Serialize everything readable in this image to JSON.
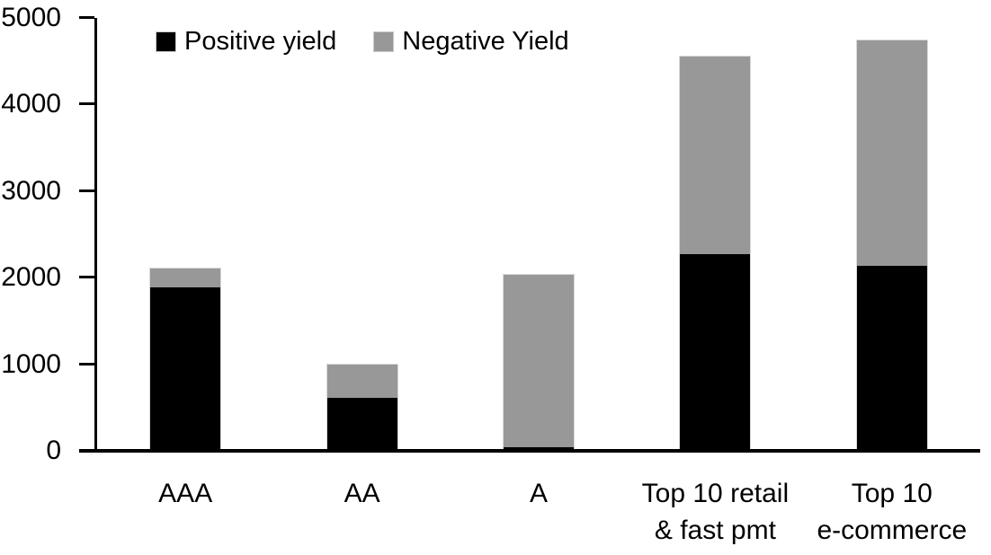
{
  "chart_data": {
    "type": "bar",
    "stacked": true,
    "title": "",
    "xlabel": "",
    "ylabel": "",
    "categories": [
      "AAA",
      "AA",
      "A",
      "Top 10 retail\n& fast pmt",
      "Top 10\ne-commerce"
    ],
    "series": [
      {
        "name": "Positive yield",
        "color": "#000000",
        "values": [
          1890,
          615,
          45,
          2270,
          2140
        ]
      },
      {
        "name": "Negative Yield",
        "color": "#989898",
        "values": [
          220,
          385,
          1985,
          2280,
          2600
        ]
      }
    ],
    "ylim": [
      0,
      5000
    ],
    "yticks": [
      0,
      1000,
      2000,
      3000,
      4000,
      5000
    ],
    "grid": false,
    "legend_position": "top-inside-left",
    "axis_color": "#000000",
    "bar_outline_color": "#d9d9d9"
  }
}
